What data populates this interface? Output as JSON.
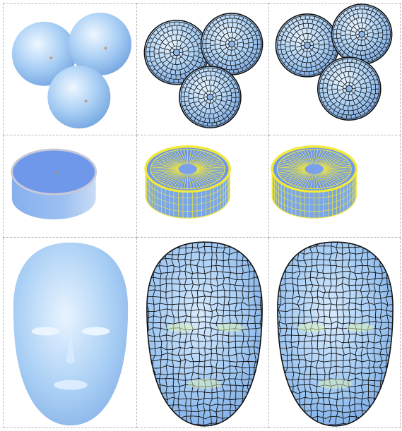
{
  "figure": {
    "rows": [
      {
        "id": "spheres",
        "columns": [
          "shaded",
          "polygonal-dark",
          "polygonal-dark"
        ]
      },
      {
        "id": "disc",
        "columns": [
          "shaded",
          "polygonal-yellow",
          "polygonal-yellow"
        ]
      },
      {
        "id": "face",
        "columns": [
          "shaded",
          "polygonal-dark",
          "polygonal-dark"
        ]
      }
    ]
  },
  "colors": {
    "shade_light": "#e3f1fe",
    "shade_mid": "#9cc6f3",
    "shade_dark": "#6f9fde",
    "disc_top": "#6f98ea",
    "disc_side": "#7aa6e8",
    "edge_dark": "#111111",
    "edge_yellow": "#f2e83a",
    "grid": "#b8b8b8"
  }
}
